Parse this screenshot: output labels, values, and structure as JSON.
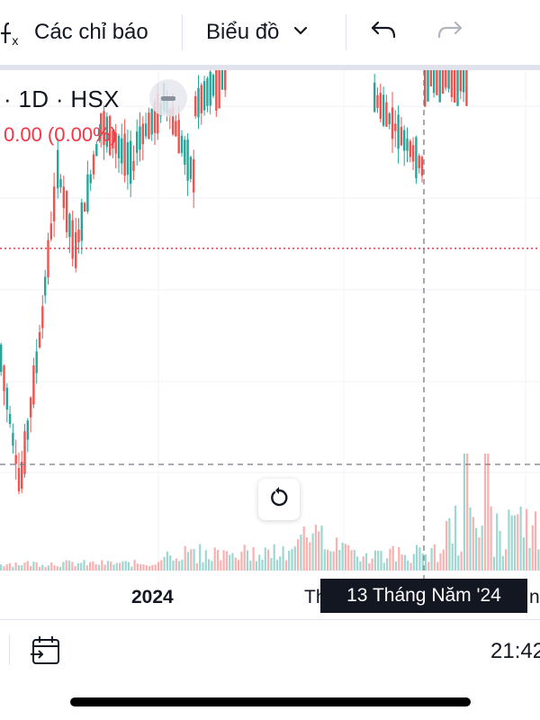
{
  "toolbar": {
    "indicators_icon": "function-fx-icon",
    "indicators_label": "Các chỉ báo",
    "chart_type_label": "Biểu đồ",
    "dropdown_icon": "chevron-down-icon",
    "undo_icon": "undo-icon",
    "redo_icon": "redo-icon"
  },
  "legend": {
    "symbol_info": "· 1D · HSX",
    "change": "0.00 (0.00%)"
  },
  "x_axis": {
    "labels": [
      "2024",
      "Th",
      "n"
    ]
  },
  "crosshair": {
    "date_label": "13 Tháng Năm '24"
  },
  "footer": {
    "date_range_icon": "calendar-goto-icon",
    "time": "21:42"
  },
  "colors": {
    "up": "#26a69a",
    "down": "#ef5350",
    "last_price_line": "#f23645",
    "tooltip_bg": "#131722"
  }
}
